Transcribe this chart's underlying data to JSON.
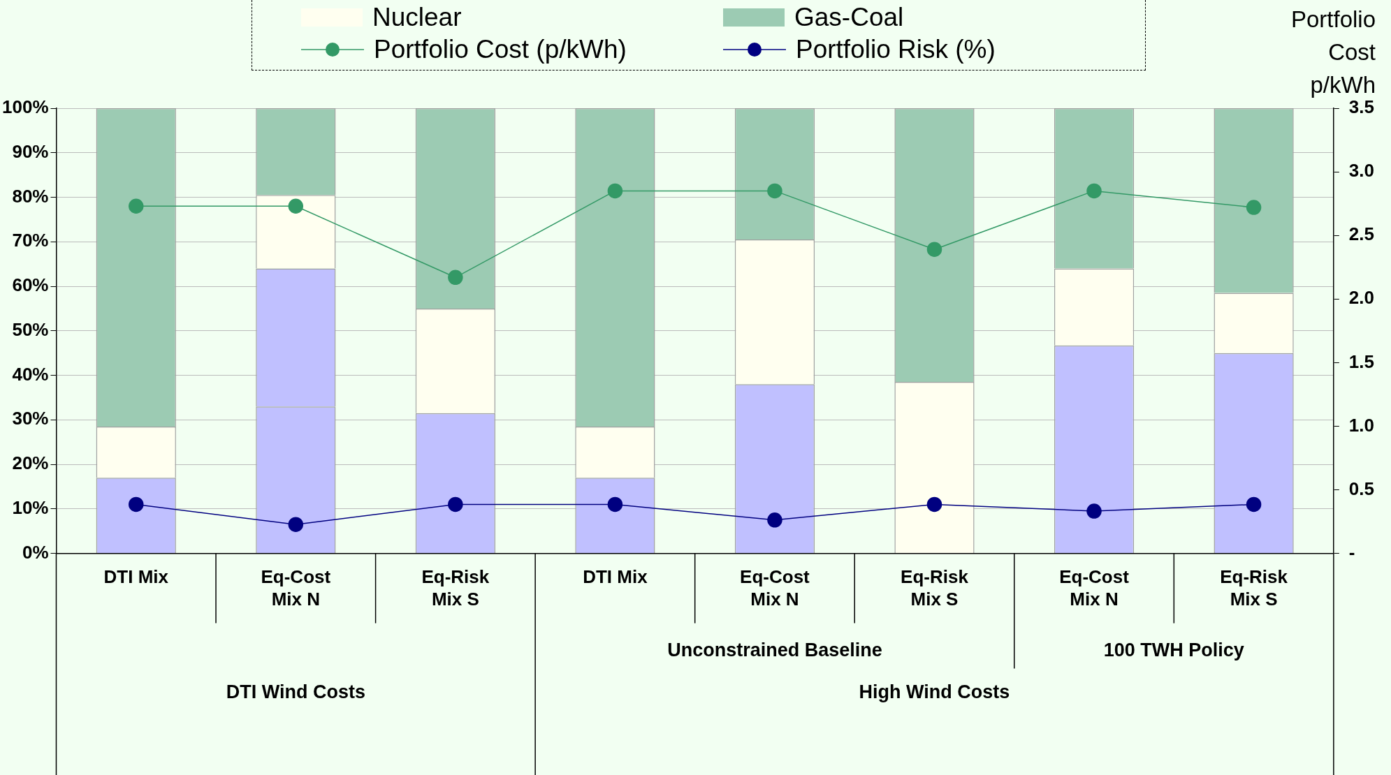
{
  "chart_data": {
    "type": "bar",
    "stacked": true,
    "categories": [
      "DTI Mix",
      "Eq-Cost\nMix N",
      "Eq-Risk\nMix S",
      "DTI Mix",
      "Eq-Cost\nMix N",
      "Eq-Risk\nMix S",
      "Eq-Cost\nMix N",
      "Eq-Risk\nMix S"
    ],
    "series": [
      {
        "color": "#c0c0ff",
        "values": [
          17,
          33,
          31.5,
          17,
          38,
          0,
          46.7,
          45
        ]
      },
      {
        "color": "#c0c0ff",
        "values": [
          0,
          31,
          0,
          0,
          0,
          0,
          0,
          0
        ]
      },
      {
        "name": "Nuclear",
        "color": "#fffff0",
        "values": [
          11.5,
          16.5,
          23.5,
          11.5,
          32.5,
          38.5,
          17.3,
          13.5
        ]
      },
      {
        "name": "Gas-Coal",
        "color": "#9ccbb3",
        "values": [
          71.5,
          19.5,
          45,
          71.5,
          29.5,
          61.5,
          36,
          41.5
        ]
      },
      {
        "name": "Portfolio Cost (p/kWh)",
        "type": "line",
        "axis": "y2",
        "color": "#339966",
        "values": [
          2.73,
          2.73,
          2.17,
          2.85,
          2.85,
          2.39,
          2.85,
          2.72
        ]
      },
      {
        "name": "Portfolio Risk (%)",
        "type": "line",
        "color": "#000080",
        "values": [
          11,
          6.5,
          11,
          11,
          7.5,
          11,
          9.5,
          11
        ]
      }
    ],
    "ylim": [
      0,
      100
    ],
    "yticks": [
      {
        "value": 0,
        "label": "0%"
      },
      {
        "value": 10,
        "label": "10%"
      },
      {
        "value": 20,
        "label": "20%"
      },
      {
        "value": 30,
        "label": "30%"
      },
      {
        "value": 40,
        "label": "40%"
      },
      {
        "value": 50,
        "label": "50%"
      },
      {
        "value": 60,
        "label": "60%"
      },
      {
        "value": 70,
        "label": "70%"
      },
      {
        "value": 80,
        "label": "80%"
      },
      {
        "value": 90,
        "label": "90%"
      },
      {
        "value": 100,
        "label": "100%"
      }
    ],
    "y2label": "Portfolio Cost p/kWh",
    "y2lim": [
      0,
      3.5
    ],
    "y2ticks": [
      {
        "value": 0,
        "label": "-"
      },
      0.5,
      {
        "value": 1,
        "label": "1.0"
      },
      1.5,
      {
        "value": 2,
        "label": "2.0"
      },
      2.5,
      {
        "value": 3,
        "label": "3.0"
      },
      3.5
    ],
    "annotations": [
      "Unconstrained Baseline",
      "100 TWH Policy",
      "DTI Wind Costs",
      "High Wind Costs"
    ],
    "grid": "y",
    "legend": "top",
    "marker": "circle",
    "line_style": "solid"
  }
}
